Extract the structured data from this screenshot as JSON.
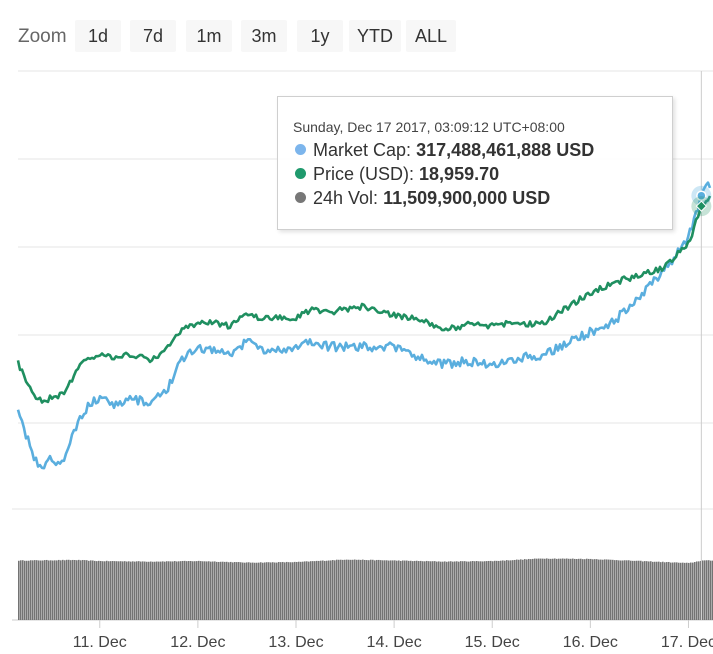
{
  "zoom": {
    "label": "Zoom",
    "buttons": [
      "1d",
      "7d",
      "1m",
      "3m",
      "1y",
      "YTD",
      "ALL"
    ]
  },
  "tooltip": {
    "header": "Sunday, Dec 17 2017, 03:09:12 UTC+08:00",
    "rows": [
      {
        "label": "Market Cap:",
        "value": "317,488,461,888 USD",
        "color": "#7cb5ec"
      },
      {
        "label": "Price (USD):",
        "value": "18,959.70",
        "color": "#1f9a6d"
      },
      {
        "label": "24h Vol:",
        "value": "11,509,900,000 USD",
        "color": "#777777"
      }
    ]
  },
  "colors": {
    "market_cap": "#5aaede",
    "price": "#1f8f60",
    "volume": "#737373",
    "grid": "#e6e6e6"
  },
  "chart_data": {
    "type": "line",
    "x_ticks": [
      "11. Dec",
      "12. Dec",
      "13. Dec",
      "14. Dec",
      "15. Dec",
      "16. Dec",
      "17. Dec"
    ],
    "x_range": [
      "10. Dec 04:00",
      "17. Dec 06:00"
    ],
    "series": [
      {
        "name": "Market Cap",
        "unit": "USD",
        "points": [
          [
            "10. Dec 04:00",
            243
          ],
          [
            "10. Dec 06:00",
            236
          ],
          [
            "10. Dec 08:00",
            228
          ],
          [
            "10. Dec 10:00",
            225
          ],
          [
            "10. Dec 12:00",
            229
          ],
          [
            "10. Dec 14:00",
            226
          ],
          [
            "10. Dec 16:00",
            230
          ],
          [
            "10. Dec 18:00",
            238
          ],
          [
            "10. Dec 20:00",
            244
          ],
          [
            "11. Dec 00:00",
            249
          ],
          [
            "11. Dec 04:00",
            246
          ],
          [
            "11. Dec 08:00",
            248
          ],
          [
            "11. Dec 12:00",
            247
          ],
          [
            "11. Dec 16:00",
            250
          ],
          [
            "11. Dec 20:00",
            262
          ],
          [
            "12. Dec 00:00",
            265
          ],
          [
            "12. Dec 04:00",
            265
          ],
          [
            "12. Dec 08:00",
            263
          ],
          [
            "12. Dec 12:00",
            268
          ],
          [
            "12. Dec 16:00",
            265
          ],
          [
            "13. Dec 00:00",
            265
          ],
          [
            "13. Dec 04:00",
            268
          ],
          [
            "13. Dec 08:00",
            266
          ],
          [
            "13. Dec 16:00",
            266
          ],
          [
            "14. Dec 00:00",
            266
          ],
          [
            "14. Dec 06:00",
            262
          ],
          [
            "14. Dec 12:00",
            260
          ],
          [
            "14. Dec 18:00",
            261
          ],
          [
            "15. Dec 00:00",
            260
          ],
          [
            "15. Dec 06:00",
            262
          ],
          [
            "15. Dec 12:00",
            263
          ],
          [
            "15. Dec 18:00",
            267
          ],
          [
            "16. Dec 00:00",
            271
          ],
          [
            "16. Dec 06:00",
            275
          ],
          [
            "16. Dec 12:00",
            283
          ],
          [
            "16. Dec 18:00",
            292
          ],
          [
            "17. Dec 00:00",
            303
          ],
          [
            "17. Dec 03:09",
            317.49
          ],
          [
            "17. Dec 06:00",
            323
          ]
        ]
      },
      {
        "name": "Price (USD)",
        "unit": "USD",
        "points": [
          [
            "10. Dec 04:00",
            14500
          ],
          [
            "10. Dec 06:00",
            14050
          ],
          [
            "10. Dec 08:00",
            13600
          ],
          [
            "10. Dec 10:00",
            13450
          ],
          [
            "10. Dec 12:00",
            13500
          ],
          [
            "10. Dec 14:00",
            13600
          ],
          [
            "10. Dec 16:00",
            13750
          ],
          [
            "10. Dec 18:00",
            14250
          ],
          [
            "10. Dec 20:00",
            14550
          ],
          [
            "11. Dec 00:00",
            14800
          ],
          [
            "11. Dec 04:00",
            14650
          ],
          [
            "11. Dec 08:00",
            14750
          ],
          [
            "11. Dec 12:00",
            14600
          ],
          [
            "11. Dec 16:00",
            14850
          ],
          [
            "11. Dec 20:00",
            15450
          ],
          [
            "12. Dec 00:00",
            15600
          ],
          [
            "12. Dec 04:00",
            15650
          ],
          [
            "12. Dec 08:00",
            15550
          ],
          [
            "12. Dec 12:00",
            15950
          ],
          [
            "12. Dec 16:00",
            15750
          ],
          [
            "13. Dec 00:00",
            15800
          ],
          [
            "13. Dec 04:00",
            16050
          ],
          [
            "13. Dec 08:00",
            15950
          ],
          [
            "13. Dec 16:00",
            16100
          ],
          [
            "14. Dec 00:00",
            15850
          ],
          [
            "14. Dec 06:00",
            15750
          ],
          [
            "14. Dec 12:00",
            15450
          ],
          [
            "14. Dec 18:00",
            15600
          ],
          [
            "15. Dec 00:00",
            15550
          ],
          [
            "15. Dec 06:00",
            15650
          ],
          [
            "15. Dec 12:00",
            15600
          ],
          [
            "15. Dec 18:00",
            16050
          ],
          [
            "16. Dec 00:00",
            16500
          ],
          [
            "16. Dec 06:00",
            16800
          ],
          [
            "16. Dec 12:00",
            17000
          ],
          [
            "16. Dec 18:00",
            17200
          ],
          [
            "17. Dec 00:00",
            17900
          ],
          [
            "17. Dec 03:09",
            18959.7
          ],
          [
            "17. Dec 06:00",
            19300
          ]
        ]
      },
      {
        "name": "24h Vol",
        "unit": "USD",
        "points": [
          [
            "10. Dec 04:00",
            11.5
          ],
          [
            "10. Dec 18:00",
            11.6
          ],
          [
            "11. Dec 00:00",
            11.4
          ],
          [
            "11. Dec 12:00",
            11.3
          ],
          [
            "12. Dec 00:00",
            11.4
          ],
          [
            "12. Dec 12:00",
            11.1
          ],
          [
            "13. Dec 00:00",
            11.2
          ],
          [
            "13. Dec 12:00",
            11.7
          ],
          [
            "14. Dec 00:00",
            11.5
          ],
          [
            "14. Dec 12:00",
            11.3
          ],
          [
            "15. Dec 00:00",
            11.4
          ],
          [
            "15. Dec 12:00",
            11.9
          ],
          [
            "16. Dec 00:00",
            11.8
          ],
          [
            "16. Dec 12:00",
            11.4
          ],
          [
            "17. Dec 00:00",
            11.0
          ],
          [
            "17. Dec 03:09",
            11.5099
          ],
          [
            "17. Dec 06:00",
            11.5
          ]
        ]
      }
    ],
    "crosshair_at": "17. Dec 03:09",
    "grid": true,
    "legend": "none"
  }
}
